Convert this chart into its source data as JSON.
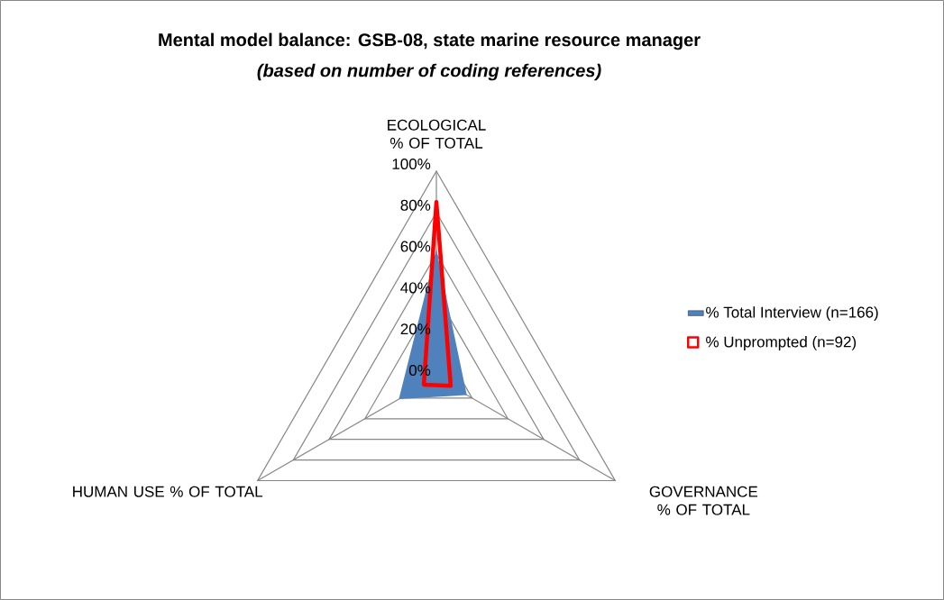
{
  "chart_data": {
    "type": "radar",
    "title": "Mental model balance: GSB-08, state marine resource manager",
    "subtitle": "(based on number of coding references)",
    "categories": [
      "ECOLOGICAL % OF TOTAL",
      "GOVERNANCE % OF TOTAL",
      "HUMAN USE % OF TOTAL"
    ],
    "series": [
      {
        "name": "% Total Interview (n=166)",
        "color": "#4f81bd",
        "values": [
          62,
          17,
          21
        ]
      },
      {
        "name": "% Unprompted (n=92)",
        "color": "#ff0000",
        "values": [
          85,
          8,
          7
        ]
      }
    ],
    "ylim": [
      0,
      100
    ],
    "yticks": [
      {
        "value": 0,
        "label": "0%"
      },
      {
        "value": 20,
        "label": "20%"
      },
      {
        "value": 40,
        "label": "40%"
      },
      {
        "value": 60,
        "label": "60%"
      },
      {
        "value": 80,
        "label": "80%"
      },
      {
        "value": 100,
        "label": "100%"
      }
    ],
    "grid": true,
    "legend": "right"
  }
}
